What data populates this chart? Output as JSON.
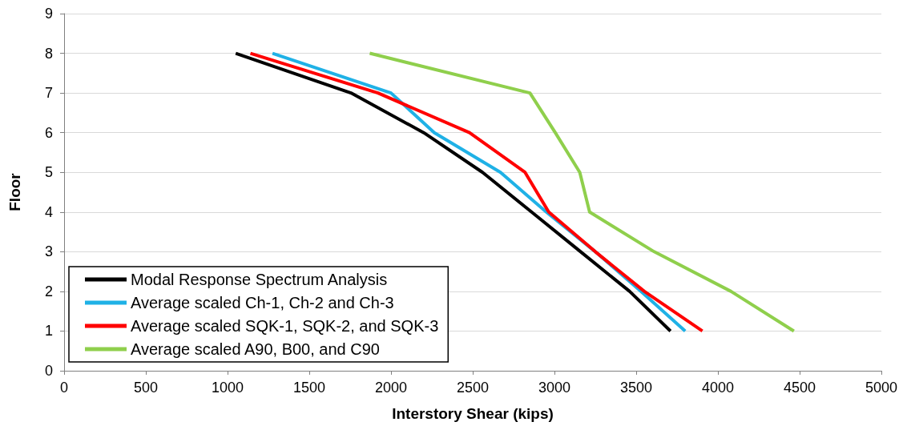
{
  "chart_data": {
    "type": "line",
    "xlabel": "Interstory Shear (kips)",
    "ylabel": "Floor",
    "xlim": [
      0,
      5000
    ],
    "xticks": [
      0,
      500,
      1000,
      1500,
      2000,
      2500,
      3000,
      3500,
      4000,
      4500,
      5000
    ],
    "ylim": [
      0,
      9
    ],
    "yticks": [
      0,
      1,
      2,
      3,
      4,
      5,
      6,
      7,
      8,
      9
    ],
    "grid": "y",
    "legend": "bottom left",
    "marker": "none",
    "line_style": "solid",
    "series": [
      {
        "name": "Modal Response Spectrum Analysis",
        "color": "#000000",
        "x": [
          3710,
          3460,
          3160,
          2860,
          2560,
          2200,
          1755,
          1050
        ],
        "values": [
          1,
          2,
          3,
          4,
          5,
          6,
          7,
          8
        ]
      },
      {
        "name": "Average scaled Ch-1, Ch-2 and Ch-3",
        "color": "#1fb1e6",
        "x": [
          3800,
          3530,
          3250,
          2950,
          2670,
          2265,
          2000,
          1275
        ],
        "values": [
          1,
          2,
          3,
          4,
          5,
          6,
          7,
          8
        ]
      },
      {
        "name": "Average scaled SQK-1, SQK-2, and SQK-3",
        "color": "#ff0000",
        "x": [
          3905,
          3550,
          3250,
          2965,
          2820,
          2480,
          1920,
          1140
        ],
        "values": [
          1,
          2,
          3,
          4,
          5,
          6,
          7,
          8
        ]
      },
      {
        "name": "Average scaled A90, B00, and C90",
        "color": "#8fcf4c",
        "x": [
          4465,
          4080,
          3610,
          3215,
          3155,
          3005,
          2850,
          1870
        ],
        "values": [
          1,
          2,
          3,
          4,
          5,
          6,
          7,
          8
        ]
      }
    ]
  }
}
